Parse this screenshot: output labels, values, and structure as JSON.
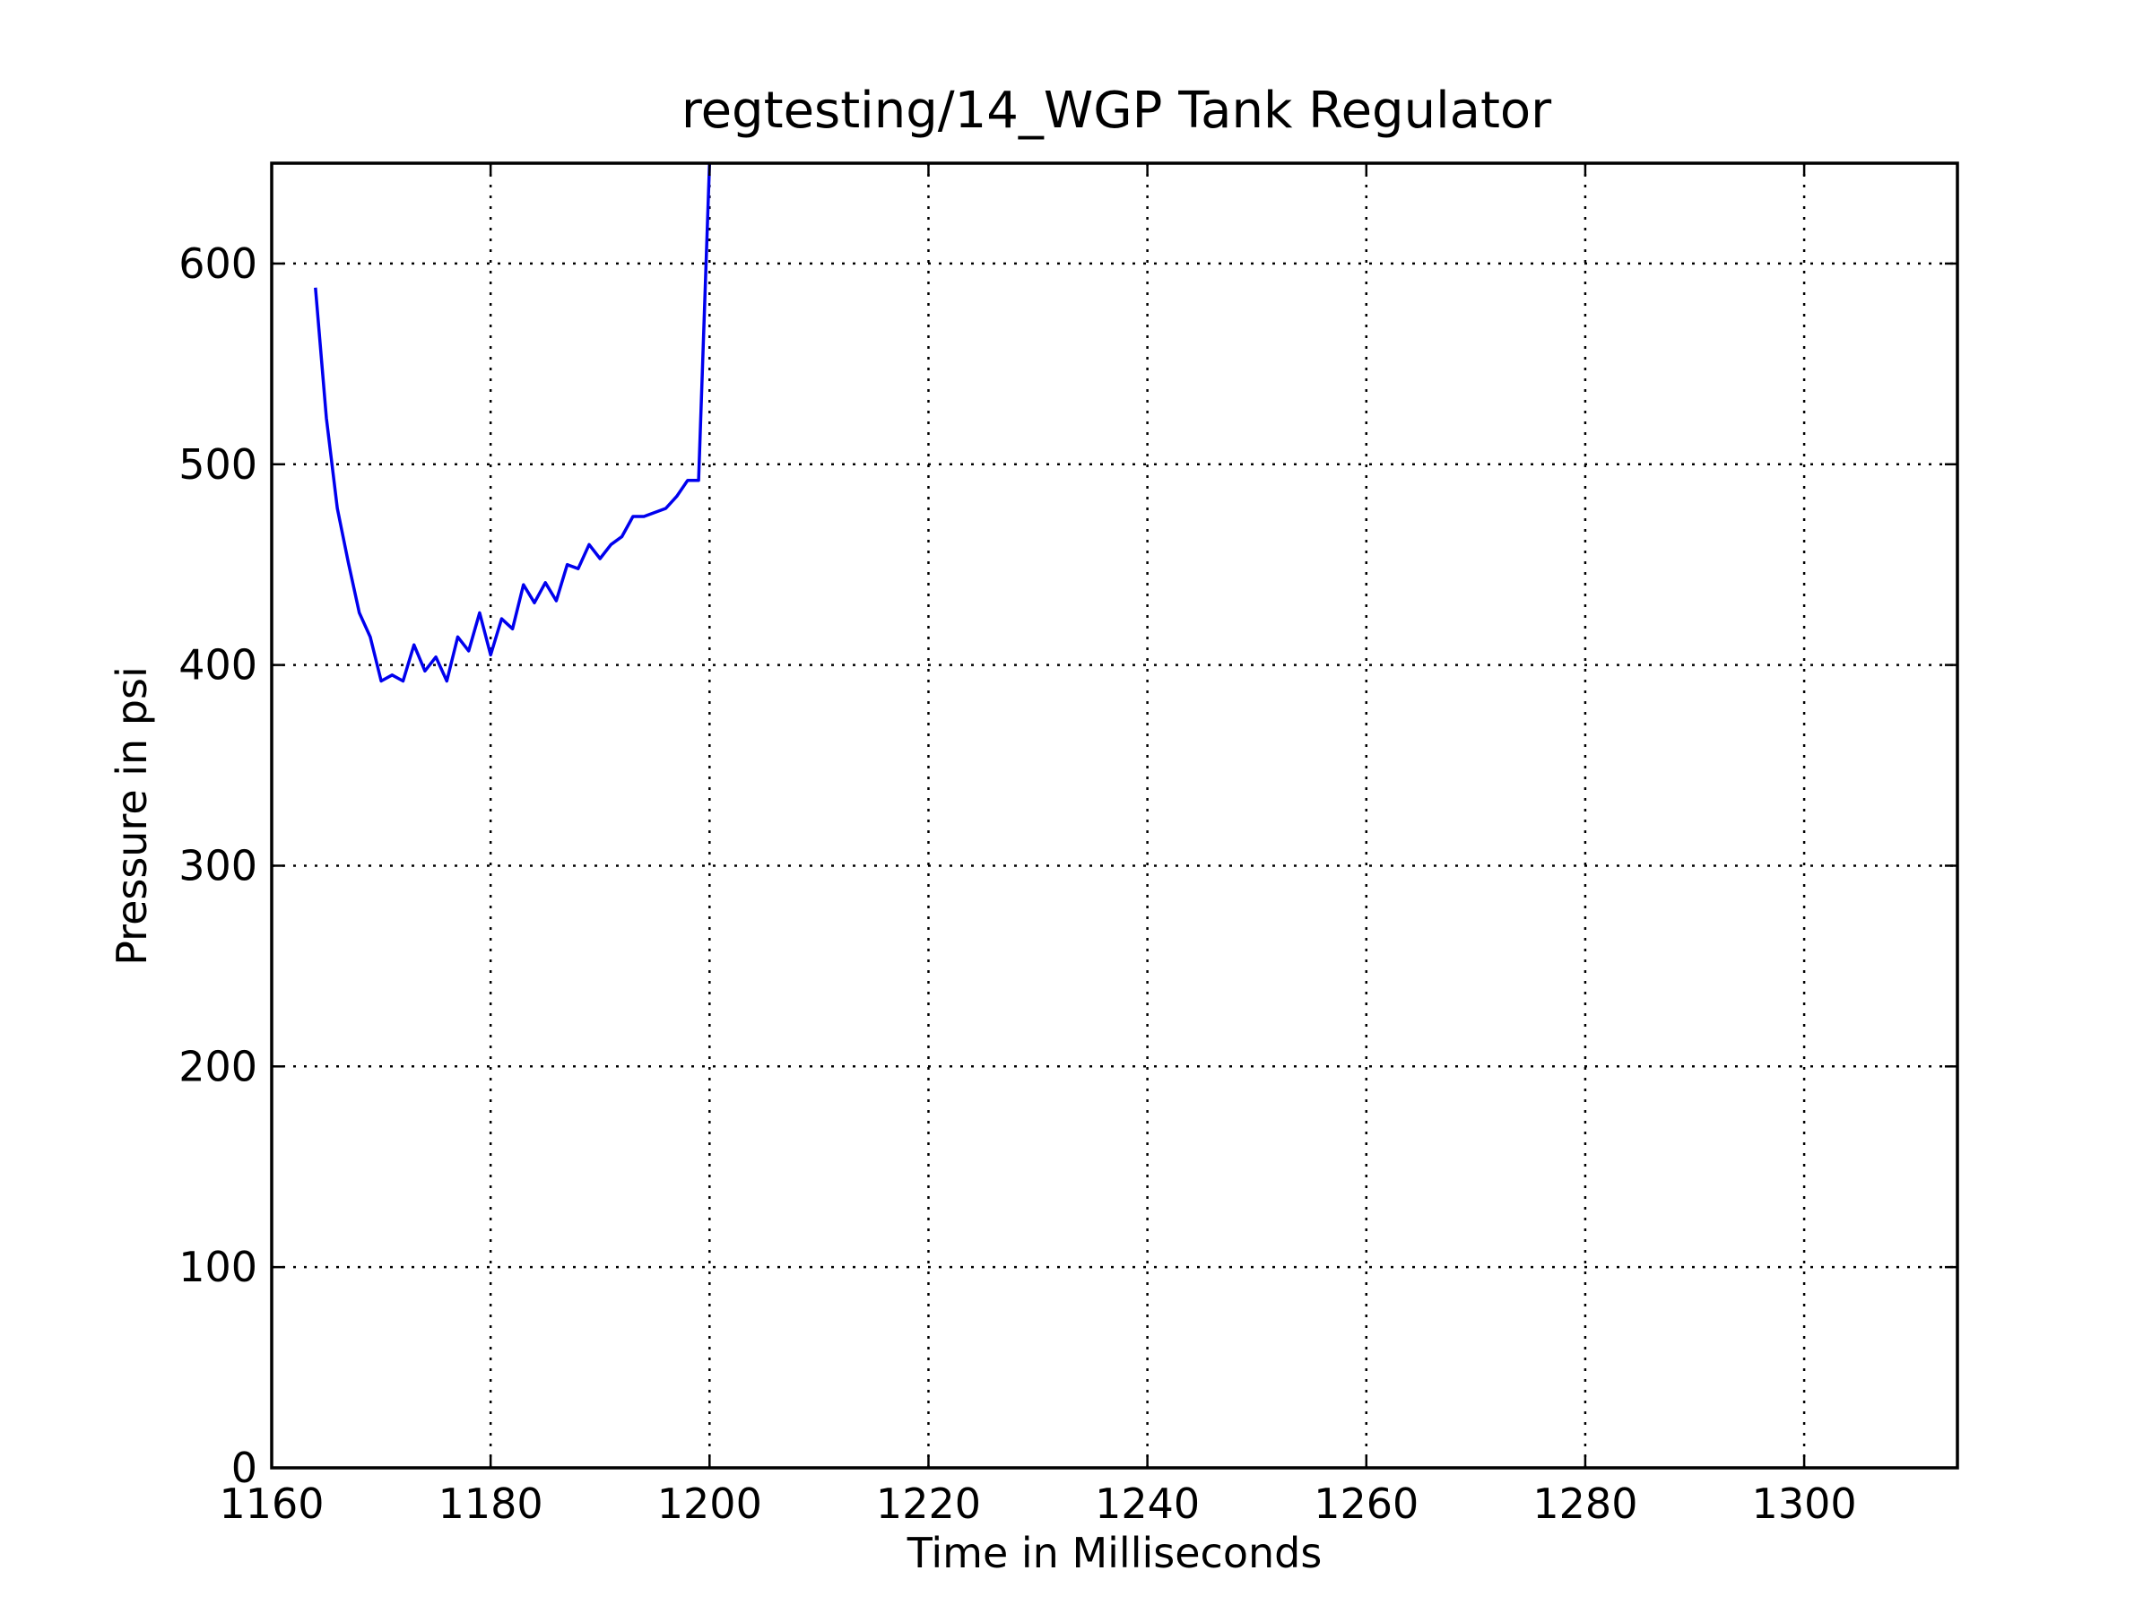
{
  "chart_data": {
    "type": "line",
    "title": "regtesting/14_WGP Tank Regulator",
    "xlabel": "Time in Milliseconds",
    "ylabel": "Pressure in psi",
    "xlim": [
      1160,
      1314
    ],
    "ylim": [
      0,
      650
    ],
    "xticks": [
      1160,
      1180,
      1200,
      1220,
      1240,
      1260,
      1280,
      1300
    ],
    "yticks": [
      0,
      100,
      200,
      300,
      400,
      500,
      600
    ],
    "xtick_labels": [
      "1160",
      "1180",
      "1200",
      "1220",
      "1240",
      "1260",
      "1280",
      "1300"
    ],
    "ytick_labels": [
      "0",
      "100",
      "200",
      "300",
      "400",
      "500",
      "600"
    ],
    "grid": true,
    "series": [
      {
        "color": "#0000ee",
        "x": [
          1164,
          1165,
          1166,
          1167,
          1168,
          1169,
          1170,
          1171,
          1172,
          1173,
          1174,
          1175,
          1176,
          1177,
          1178,
          1179,
          1180,
          1181,
          1182,
          1183,
          1184,
          1185,
          1186,
          1187,
          1188,
          1189,
          1190,
          1191,
          1192,
          1193,
          1194,
          1195,
          1196,
          1197,
          1198,
          1199,
          1200
        ],
        "y": [
          588,
          523,
          478,
          451,
          426,
          414,
          392,
          395,
          392,
          410,
          397,
          404,
          392,
          414,
          407,
          426,
          405,
          423,
          418,
          440,
          431,
          441,
          432,
          450,
          448,
          460,
          453,
          460,
          464,
          474,
          474,
          476,
          478,
          484,
          492,
          492,
          650
        ]
      }
    ]
  }
}
